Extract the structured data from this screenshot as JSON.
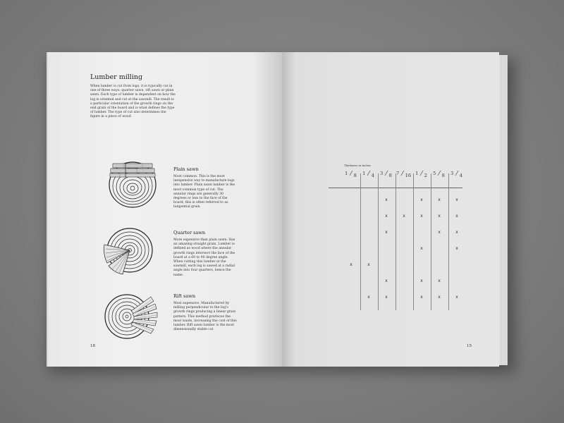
{
  "left_page": {
    "title": "Lumber milling",
    "intro": "When lumber is cut from logs, it is typically cut in one of three ways: quarter sawn, rift sawn or plain sawn. Each type of lumber is dependent on how the log is oriented and cut at the sawmill. The result is a particular orientation of the growth rings on the end grain of the board and is what defines the type of lumber. The type of cut also determines the figure in a piece of wood.",
    "sections": [
      {
        "heading": "Plain sawn",
        "body": "Most common. This is the most inexpensive way to manufacture logs into lumber. Plain sawn lumber is the most common type of cut. The annular rings are generally 30 degrees or less to the face of the board; this is often referred to as tangential grain."
      },
      {
        "heading": "Quarter sawn",
        "body": "More expensive than plain sawn. Has an amazing straight grain. Lumber is defined as wood where the annular growth rings intersect the face of the board at a 60 to 90 degree angle. When cutting this lumber at the sawmill, each log is sawed at a radial angle into four quarters, hence the name."
      },
      {
        "heading": "Rift sawn",
        "body": "Most expensive. Manufactured by milling perpendicular to the log's growth rings producing a linear grain pattern. This method produces the most waste, increasing the cost of this lumber. Rift sawn lumber is the most dimensionally stable cut"
      }
    ],
    "page_number": "18"
  },
  "right_page": {
    "table_caption": "Thickness in Inches",
    "columns": [
      {
        "num": "1",
        "den": "8"
      },
      {
        "num": "1",
        "den": "4"
      },
      {
        "num": "3",
        "den": "8"
      },
      {
        "num": "7",
        "den": "16"
      },
      {
        "num": "1",
        "den": "2"
      },
      {
        "num": "5",
        "den": "8"
      },
      {
        "num": "3",
        "den": "4"
      }
    ],
    "mark": "x",
    "rows": [
      [
        false,
        false,
        true,
        false,
        true,
        true,
        true
      ],
      [
        false,
        false,
        true,
        true,
        true,
        true,
        true
      ],
      [
        false,
        false,
        true,
        false,
        false,
        true,
        true
      ],
      [
        false,
        false,
        false,
        false,
        true,
        false,
        true
      ],
      [
        true,
        true,
        false,
        false,
        false,
        false,
        false
      ],
      [
        false,
        false,
        true,
        false,
        true,
        true,
        false
      ],
      [
        false,
        true,
        true,
        false,
        true,
        true,
        true
      ]
    ],
    "page_number": "15"
  }
}
